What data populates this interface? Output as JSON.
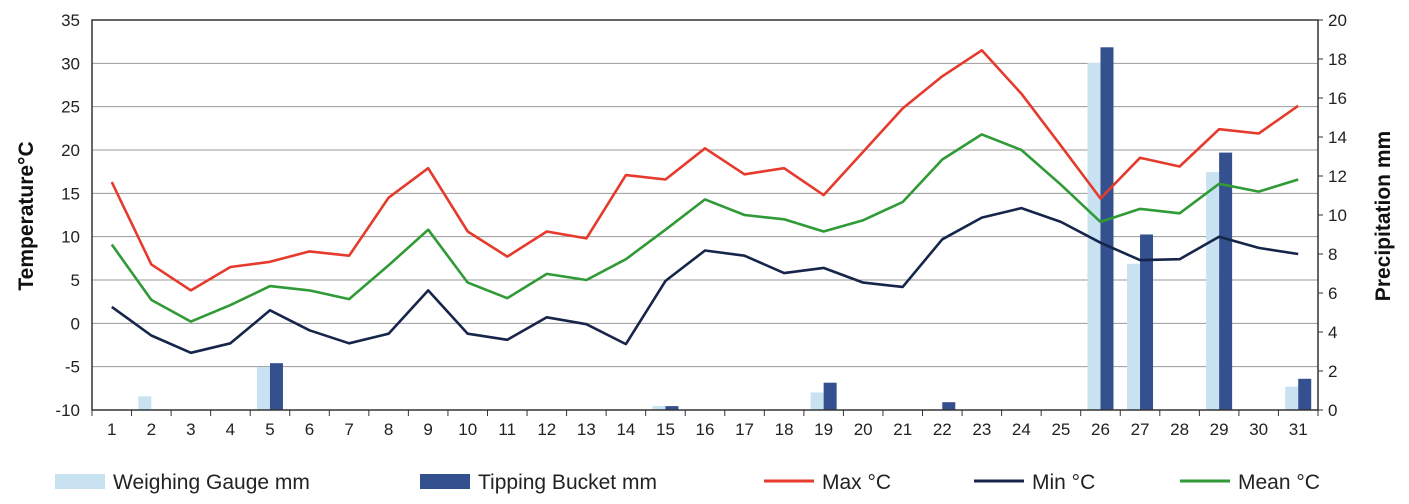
{
  "chart_data": {
    "type": "bar",
    "title": "",
    "ylabel_left": "Temperature°C",
    "ylabel_right": "Precipitation mm",
    "left_axis": {
      "min": -10,
      "max": 35,
      "step": 5
    },
    "right_axis": {
      "min": 0,
      "max": 20,
      "step": 2
    },
    "grid": true,
    "legend_position": "bottom",
    "categories": [
      "1",
      "2",
      "3",
      "4",
      "5",
      "6",
      "7",
      "8",
      "9",
      "10",
      "11",
      "12",
      "13",
      "14",
      "15",
      "16",
      "17",
      "18",
      "19",
      "20",
      "21",
      "22",
      "23",
      "24",
      "25",
      "26",
      "27",
      "28",
      "29",
      "30",
      "31"
    ],
    "bar_series": [
      {
        "name": "Weighing Gauge mm",
        "color": "#c8e2f1",
        "axis": "right",
        "values": [
          0,
          0.7,
          0,
          0,
          2.2,
          0,
          0,
          0,
          0,
          0,
          0,
          0,
          0,
          0,
          0.2,
          0,
          0,
          0,
          0.9,
          0,
          0,
          0,
          0,
          0,
          0,
          17.8,
          7.5,
          0,
          12.2,
          0,
          1.2
        ]
      },
      {
        "name": "Tipping Bucket mm",
        "color": "#34508e",
        "axis": "right",
        "values": [
          0,
          0,
          0,
          0,
          2.4,
          0,
          0,
          0,
          0,
          0,
          0,
          0,
          0,
          0,
          0.2,
          0,
          0,
          0,
          1.4,
          0,
          0,
          0.4,
          0,
          0,
          0,
          18.6,
          9.0,
          0,
          13.2,
          0,
          1.6
        ]
      }
    ],
    "line_series": [
      {
        "name": "Max °C",
        "color": "#e53a2c",
        "axis": "left",
        "values": [
          16.3,
          6.8,
          3.8,
          6.5,
          7.1,
          8.3,
          7.8,
          14.5,
          17.9,
          10.6,
          7.7,
          10.6,
          9.8,
          17.1,
          16.6,
          20.2,
          17.2,
          17.9,
          14.8,
          19.8,
          24.8,
          28.5,
          31.5,
          26.5,
          20.5,
          14.4,
          19.1,
          18.1,
          22.4,
          21.9,
          25.1
        ]
      },
      {
        "name": "Min °C",
        "color": "#16254a",
        "axis": "left",
        "values": [
          1.9,
          -1.4,
          -3.4,
          -2.3,
          1.5,
          -0.8,
          -2.3,
          -1.2,
          3.8,
          -1.2,
          -1.9,
          0.7,
          -0.1,
          -2.4,
          4.9,
          8.4,
          7.8,
          5.8,
          6.4,
          4.7,
          4.2,
          9.7,
          12.2,
          13.3,
          11.7,
          9.3,
          7.3,
          7.4,
          10.0,
          8.7,
          8.0
        ]
      },
      {
        "name": "Mean °C",
        "color": "#2f9a36",
        "axis": "left",
        "values": [
          9.1,
          2.7,
          0.2,
          2.1,
          4.3,
          3.8,
          2.8,
          6.7,
          10.8,
          4.7,
          2.9,
          5.7,
          5.0,
          7.4,
          10.8,
          14.3,
          12.5,
          12.0,
          10.6,
          11.9,
          14.0,
          18.9,
          21.8,
          20.0,
          16.0,
          11.7,
          13.2,
          12.7,
          16.1,
          15.2,
          16.6
        ]
      }
    ]
  }
}
